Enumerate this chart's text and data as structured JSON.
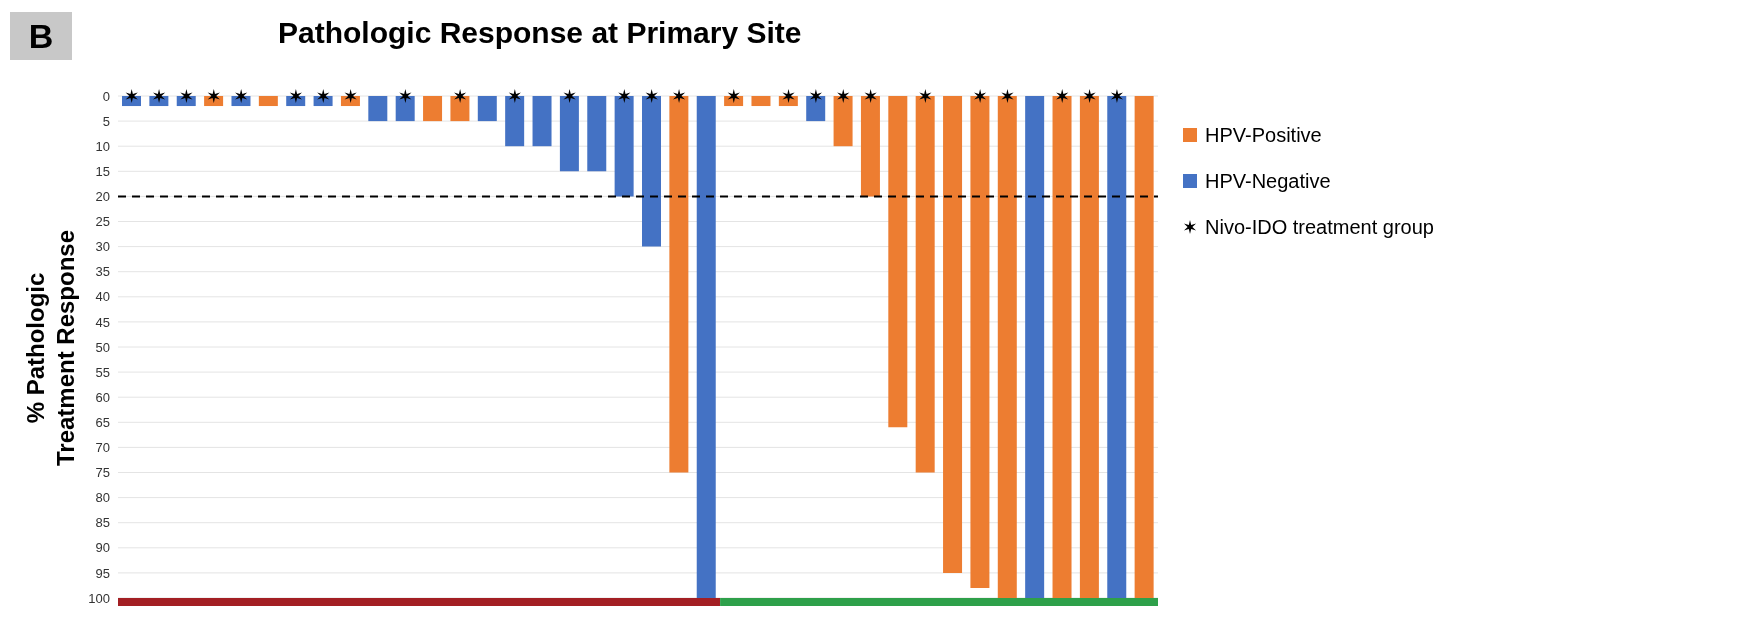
{
  "chart_data": {
    "type": "bar",
    "title": "Pathologic Response at Primary Site",
    "ylabel": "% Pathologic Treatment Response",
    "categories": [
      null,
      null,
      null,
      null,
      null,
      null,
      null,
      null,
      null,
      null,
      null,
      null,
      null,
      null,
      null,
      null,
      null,
      null,
      null,
      null,
      null,
      null,
      null,
      null,
      null,
      null,
      null,
      null,
      null,
      null,
      null,
      null,
      null,
      null,
      null,
      null,
      null,
      null
    ],
    "stacked": true,
    "series": [
      {
        "name": "HPV-Positive",
        "color": "#ed7d31",
        "values": [
          null,
          null,
          null,
          2,
          null,
          2,
          null,
          null,
          2,
          null,
          null,
          5,
          5,
          null,
          null,
          null,
          null,
          null,
          null,
          null,
          75,
          null,
          2,
          2,
          2,
          null,
          10,
          20,
          66,
          75,
          95,
          98,
          100,
          null,
          100,
          100,
          null,
          100
        ]
      },
      {
        "name": "HPV-Negative",
        "color": "#4472c4",
        "values": [
          2,
          2,
          2,
          null,
          2,
          null,
          2,
          2,
          null,
          5,
          5,
          null,
          null,
          5,
          10,
          10,
          15,
          15,
          20,
          30,
          null,
          100,
          null,
          null,
          null,
          5,
          null,
          null,
          null,
          null,
          null,
          null,
          null,
          100,
          null,
          null,
          100,
          null
        ]
      },
      {
        "name": "Nivo-IDO treatment group",
        "type": "scatter",
        "color": "#000000",
        "marker": "cross",
        "values": [
          0,
          0,
          0,
          0,
          0,
          null,
          0,
          0,
          0,
          null,
          0,
          null,
          0,
          null,
          0,
          null,
          0,
          null,
          0,
          0,
          0,
          null,
          0,
          null,
          0,
          0,
          0,
          0,
          null,
          0,
          null,
          0,
          0,
          null,
          0,
          0,
          0,
          null
        ]
      }
    ],
    "ylim": [
      100,
      0
    ],
    "yticks": [
      0,
      5,
      10,
      15,
      20,
      25,
      30,
      35,
      40,
      45,
      50,
      55,
      60,
      65,
      70,
      75,
      80,
      85,
      90,
      95,
      100
    ],
    "grid": "y",
    "legend": "right",
    "tick_labels": "y",
    "ref_lines": [
      {
        "axis": "y",
        "value": 20,
        "color": "#000000",
        "line_style": "dashed"
      }
    ],
    "annotations": [
      "B"
    ]
  }
}
